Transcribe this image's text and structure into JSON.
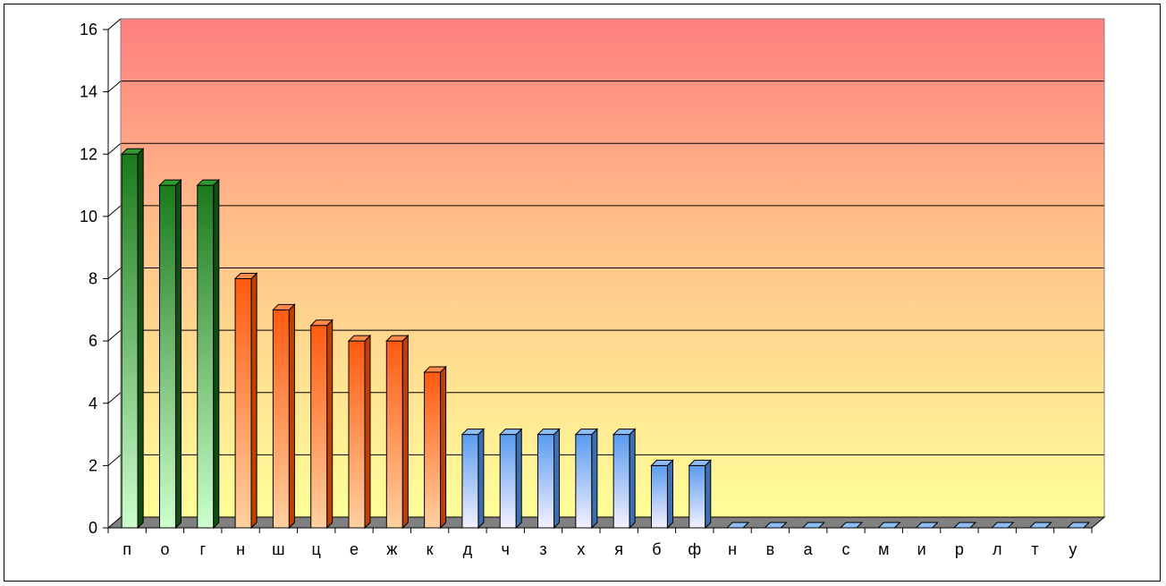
{
  "chart_data": {
    "type": "bar",
    "title": "",
    "xlabel": "",
    "ylabel": "",
    "ylim": [
      0,
      16
    ],
    "yticks": [
      "0",
      "2",
      "4",
      "6",
      "8",
      "10",
      "12",
      "14",
      "16"
    ],
    "grid": true,
    "categories": [
      "п",
      "о",
      "г",
      "н",
      "ш",
      "ц",
      "е",
      "ж",
      "к",
      "д",
      "ч",
      "з",
      "х",
      "я",
      "б",
      "ф",
      "н",
      "в",
      "а",
      "с",
      "м",
      "и",
      "р",
      "л",
      "т",
      "у"
    ],
    "values": [
      12,
      11,
      11,
      8,
      7,
      6.5,
      6,
      6,
      5,
      3,
      3,
      3,
      3,
      3,
      2,
      2,
      0,
      0,
      0,
      0,
      0,
      0,
      0,
      0,
      0,
      0
    ],
    "groups": [
      "green",
      "green",
      "green",
      "orange",
      "orange",
      "orange",
      "orange",
      "orange",
      "orange",
      "blue",
      "blue",
      "blue",
      "blue",
      "blue",
      "blue",
      "blue",
      "blue",
      "blue",
      "blue",
      "blue",
      "blue",
      "blue",
      "blue",
      "blue",
      "blue",
      "blue"
    ],
    "colors": {
      "green": "#1e7a1e",
      "orange": "#ff6a1a",
      "blue": "#6fa8f0",
      "background_top": "#ff7f7f",
      "background_bottom": "#ffff99",
      "floor": "#808080"
    }
  }
}
